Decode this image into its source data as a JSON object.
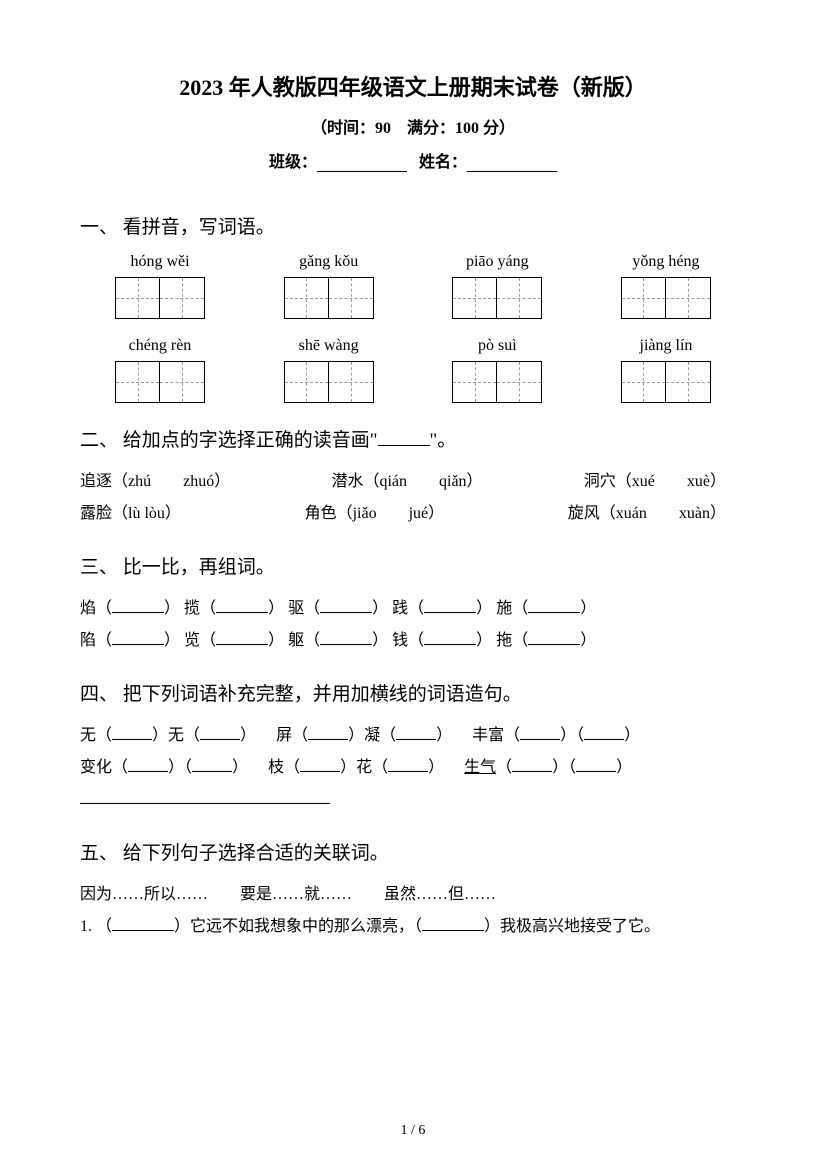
{
  "header": {
    "title": "2023 年人教版四年级语文上册期末试卷（新版）",
    "subtitle": "（时间：90　满分：100 分）",
    "class_label": "班级：",
    "name_label": "姓名："
  },
  "section1": {
    "title": "一、 看拼音，写词语。",
    "pinyin_row1": [
      "hóng wěi",
      "gǎng kǒu",
      "piāo yáng",
      "yǒng héng"
    ],
    "pinyin_row2": [
      "chéng rèn",
      "shē wàng",
      "pò suì",
      "jiàng lín"
    ]
  },
  "section2": {
    "title_pre": "二、 给加点的字选择正确的读音画\"",
    "title_post": "\"。",
    "row1": [
      {
        "word": "追逐",
        "opts": "（zhú　　zhuó）"
      },
      {
        "word": "潜水",
        "opts": "（qián　　qiǎn）"
      },
      {
        "word": "洞穴",
        "opts": "（xué　　xuè）"
      }
    ],
    "row2": [
      {
        "word": "露脸",
        "opts": "（lù lòu）"
      },
      {
        "word": "角色",
        "opts": "（jiǎo　　jué）"
      },
      {
        "word": "旋风",
        "opts": "（xuán　　xuàn）"
      }
    ]
  },
  "section3": {
    "title": "三、 比一比，再组词。",
    "row1": [
      "焰",
      "揽",
      "驱",
      "践",
      "施"
    ],
    "row2": [
      "陷",
      "览",
      "躯",
      "钱",
      "拖"
    ]
  },
  "section4": {
    "title": "四、 把下列词语补充完整，并用加横线的词语造句。",
    "row1_part1_pre": "无（",
    "row1_part1_mid": "）无（",
    "row1_part1_post": "）",
    "row1_part2_pre": "屏（",
    "row1_part2_mid": "）凝（",
    "row1_part2_post": "）",
    "row1_part3_pre": "丰富（",
    "row1_part3_mid": "）（",
    "row1_part3_post": "）",
    "row2_part1_pre": "变化（",
    "row2_part1_mid": "）（",
    "row2_part1_post": "）",
    "row2_part2_pre": "枝（",
    "row2_part2_mid": "）花（",
    "row2_part2_post": "）",
    "row2_part3_word": "生气",
    "row2_part3_pre": "（",
    "row2_part3_mid": "）（",
    "row2_part3_post": "）"
  },
  "section5": {
    "title": "五、 给下列句子选择合适的关联词。",
    "options": "因为……所以……　　要是……就……　　虽然……但……",
    "q1_pre": "1. （",
    "q1_mid": "）它远不如我想象中的那么漂亮，（",
    "q1_post": "）我极高兴地接受了它。"
  },
  "footer": {
    "page": "1 / 6"
  }
}
